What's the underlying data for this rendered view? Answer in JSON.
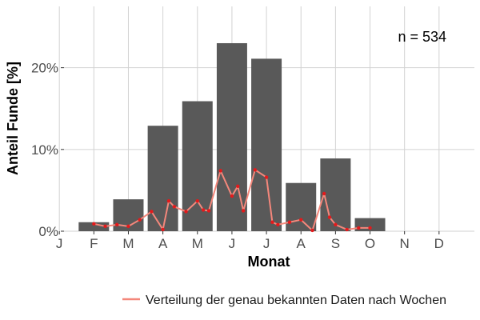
{
  "chart_data": {
    "type": "bar",
    "xlabel": "Monat",
    "ylabel": "Anteil Funde [%]",
    "categories": [
      "J",
      "F",
      "M",
      "A",
      "M",
      "J",
      "J",
      "A",
      "S",
      "O",
      "N",
      "D"
    ],
    "values": [
      0,
      1.1,
      3.9,
      12.9,
      15.9,
      23.0,
      21.1,
      5.9,
      8.9,
      1.6,
      0,
      0
    ],
    "ylim": [
      0,
      27.5
    ],
    "yticks": [
      0,
      10,
      20
    ],
    "ytick_labels": [
      "0%",
      "10%",
      "20%"
    ],
    "grid": true,
    "bar_color": "#595959",
    "annotation": "n = 534",
    "line_series": {
      "name": "Verteilung der genau bekannten Daten nach Wochen",
      "color": "#f4877b",
      "point_color": "#e31a1c",
      "x_month_units": [
        2.0,
        2.33,
        2.67,
        3.0,
        3.33,
        3.67,
        4.0,
        4.17,
        4.33,
        4.67,
        5.0,
        5.17,
        5.33,
        5.67,
        6.0,
        6.17,
        6.33,
        6.67,
        7.0,
        7.17,
        7.33,
        7.67,
        8.0,
        8.33,
        8.67,
        8.83,
        9.0,
        9.33,
        9.67,
        10.0
      ],
      "values": [
        0.9,
        0.6,
        0.8,
        0.6,
        1.4,
        2.4,
        0.2,
        3.7,
        3.0,
        2.4,
        3.7,
        2.6,
        2.5,
        7.4,
        4.3,
        5.5,
        2.5,
        7.5,
        6.6,
        1.1,
        0.8,
        1.1,
        1.4,
        0.1,
        4.6,
        1.7,
        0.8,
        0.2,
        0.4,
        0.4
      ]
    },
    "legend": {
      "position": "bottom",
      "label": "Verteilung der genau bekannten Daten nach Wochen"
    }
  }
}
